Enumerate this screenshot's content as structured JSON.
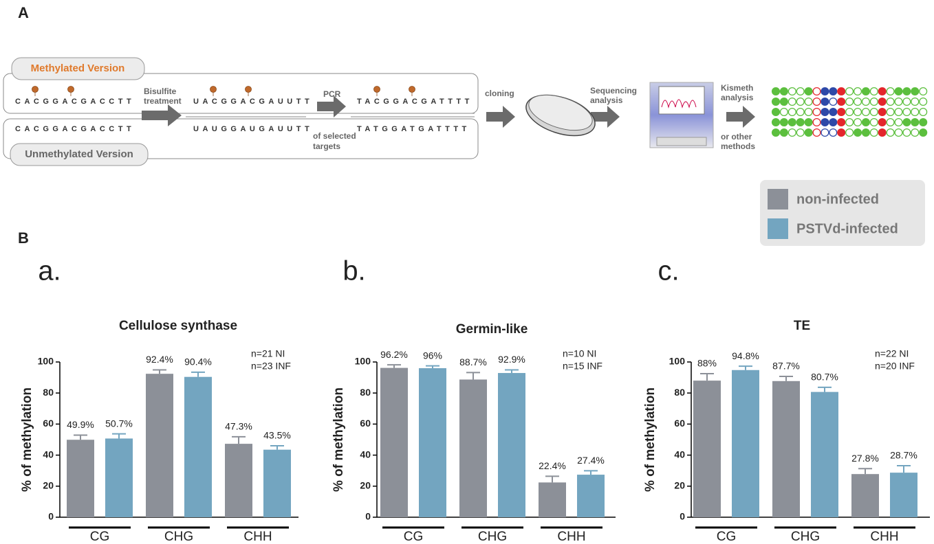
{
  "figure": {
    "panel_a": "A",
    "panel_b": "B"
  },
  "diagram": {
    "methylated_label": "Methylated Version",
    "unmethylated_label": "Unmethylated Version",
    "sequences": [
      "CACGGACGACCTT",
      "CACGGACGACCTT",
      "UACGGACGAUUTT",
      "UAUGGAUGAUUTT",
      "TACGGACGATTTT",
      "TATGGATGATTTT"
    ],
    "steps": {
      "bisulfite": [
        "Bisulfite",
        "treatment"
      ],
      "pcr": "PCR",
      "pcr_note": [
        "of selected",
        "targets"
      ],
      "cloning": "cloning",
      "sequencing": [
        "Sequencing",
        "analysis"
      ],
      "kismeth": [
        "Kismeth",
        "analysis"
      ],
      "other": [
        "or other",
        "methods"
      ]
    }
  },
  "chart_data": [
    {
      "type": "bar",
      "panel": "a.",
      "title": "Cellulose synthase",
      "y_label": "% of methylation",
      "annotation": [
        "n=21 NI",
        "n=23 INF"
      ],
      "categories": [
        "CG",
        "CHG",
        "CHH"
      ],
      "series": [
        {
          "name": "non-infected",
          "color": "#8c9098",
          "values": [
            49.9,
            92.4,
            47.3
          ],
          "value_labels": [
            "49.9%",
            "92.4%",
            "47.3%"
          ],
          "errors": [
            3,
            2.5,
            4.5
          ]
        },
        {
          "name": "PSTVd-infected",
          "color": "#73a5c0",
          "values": [
            50.7,
            90.4,
            43.5
          ],
          "value_labels": [
            "50.7%",
            "90.4%",
            "43.5%"
          ],
          "errors": [
            3,
            3,
            2.5
          ]
        }
      ],
      "ylim": [
        0,
        100
      ],
      "yticks": [
        0,
        20,
        40,
        60,
        80,
        100
      ]
    },
    {
      "type": "bar",
      "panel": "b.",
      "title": "Germin-like",
      "y_label": "% of methylation",
      "annotation": [
        "n=10 NI",
        "n=15 INF"
      ],
      "categories": [
        "CG",
        "CHG",
        "CHH"
      ],
      "series": [
        {
          "color": "#8c9098",
          "values": [
            96.2,
            88.7,
            22.4
          ],
          "value_labels": [
            "96.2%",
            "88.7%",
            "22.4%"
          ],
          "errors": [
            2,
            4.5,
            4
          ]
        },
        {
          "color": "#73a5c0",
          "values": [
            96,
            92.9,
            27.4
          ],
          "value_labels": [
            "96%",
            "92.9%",
            "27.4%"
          ],
          "errors": [
            1.5,
            2,
            2.5
          ]
        }
      ],
      "ylim": [
        0,
        100
      ],
      "yticks": [
        0,
        20,
        40,
        60,
        80,
        100
      ]
    },
    {
      "type": "bar",
      "panel": "c.",
      "title": "TE",
      "y_label": "% of methylation",
      "annotation": [
        "n=22 NI",
        "n=20 INF"
      ],
      "categories": [
        "CG",
        "CHG",
        "CHH"
      ],
      "series": [
        {
          "color": "#8c9098",
          "values": [
            88,
            87.7,
            27.8
          ],
          "value_labels": [
            "88%",
            "87.7%",
            "27.8%"
          ],
          "errors": [
            4.5,
            3,
            3.5
          ]
        },
        {
          "color": "#73a5c0",
          "values": [
            94.8,
            80.7,
            28.7
          ],
          "value_labels": [
            "94.8%",
            "80.7%",
            "28.7%"
          ],
          "errors": [
            2.5,
            3,
            4.5
          ]
        }
      ],
      "ylim": [
        0,
        100
      ],
      "yticks": [
        0,
        20,
        40,
        60,
        80,
        100
      ]
    }
  ]
}
